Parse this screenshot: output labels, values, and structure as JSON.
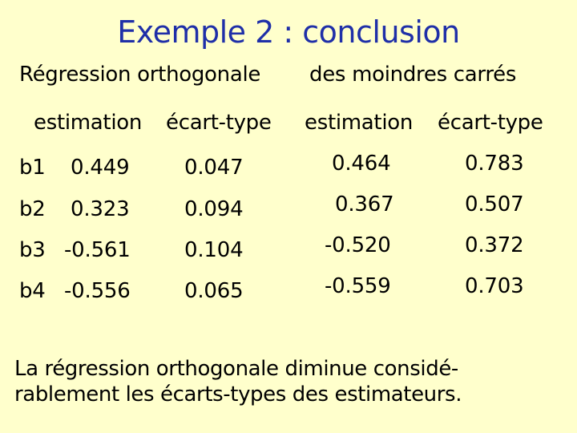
{
  "title": "Exemple 2 : conclusion",
  "sections": {
    "left": "Régression orthogonale",
    "right": "des moindres carrés"
  },
  "column_headers": {
    "left_estimation": "estimation",
    "left_stddev": "écart-type",
    "right_estimation": "estimation",
    "right_stddev": "écart-type"
  },
  "rows": [
    {
      "label": "b1",
      "ortho_est": "0.449",
      "ortho_sd": "0.047",
      "ls_est": "0.464",
      "ls_sd": "0.783"
    },
    {
      "label": "b2",
      "ortho_est": "0.323",
      "ortho_sd": "0.094",
      "ls_est": "0.367",
      "ls_sd": "0.507"
    },
    {
      "label": "b3",
      "ortho_est": "-0.561",
      "ortho_sd": "0.104",
      "ls_est": "-0.520",
      "ls_sd": "0.372"
    },
    {
      "label": "b4",
      "ortho_est": "-0.556",
      "ortho_sd": "0.065",
      "ls_est": "-0.559",
      "ls_sd": "0.703"
    }
  ],
  "conclusion": {
    "line1": "La régression orthogonale diminue considé-",
    "line2": "rablement les écarts-types des estimateurs."
  },
  "colors": {
    "background": "#ffffcc",
    "title": "#1f2fa8",
    "text": "#000000"
  }
}
